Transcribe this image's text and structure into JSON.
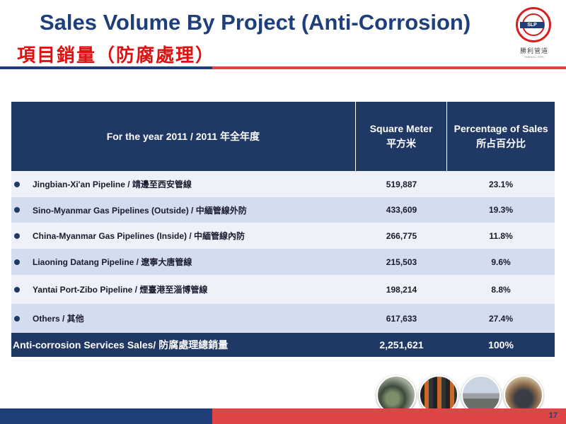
{
  "header": {
    "title_en": "Sales Volume By Project (Anti-Corrosion)",
    "title_zh": "項目銷量（防腐處理）"
  },
  "logo": {
    "badge_text": "SLP",
    "cn_text": "勝利管道",
    "en_text": "SHENGLI PIPE"
  },
  "table": {
    "headers": {
      "col1": "For the year 2011 / 2011 年全年度",
      "col2_line1": "Square Meter",
      "col2_line2": "平方米",
      "col3_line1": "Percentage of Sales",
      "col3_line2": "所占百分比"
    },
    "rows": [
      {
        "name": "Jingbian-Xi'an Pipeline / 靖邊至西安管線",
        "sqm": "519,887",
        "pct": "23.1%"
      },
      {
        "name": "Sino-Myanmar Gas Pipelines (Outside) / 中緬管線外防",
        "sqm": "433,609",
        "pct": "19.3%"
      },
      {
        "name": "China-Myanmar Gas Pipelines (Inside) / 中緬管線內防",
        "sqm": "266,775",
        "pct": "11.8%"
      },
      {
        "name": "Liaoning Datang Pipeline / 遼寧大唐管線",
        "sqm": "215,503",
        "pct": "9.6%"
      },
      {
        "name": "Yantai Port-Zibo Pipeline / 煙臺港至淄博管線",
        "sqm": "198,214",
        "pct": "8.8%"
      },
      {
        "name": "Others / 其他",
        "sqm": "617,633",
        "pct": "27.4%"
      }
    ],
    "total": {
      "name": "Anti-corrosion Services Sales/ 防腐處理總銷量",
      "sqm": "2,251,621",
      "pct": "100%"
    }
  },
  "footer": {
    "page_number": "17"
  },
  "colors": {
    "navy": "#1f3864",
    "title_blue": "#1f3f7a",
    "red": "#e01010",
    "row_light": "#eef2f8",
    "row_dark": "#d3ddee"
  }
}
